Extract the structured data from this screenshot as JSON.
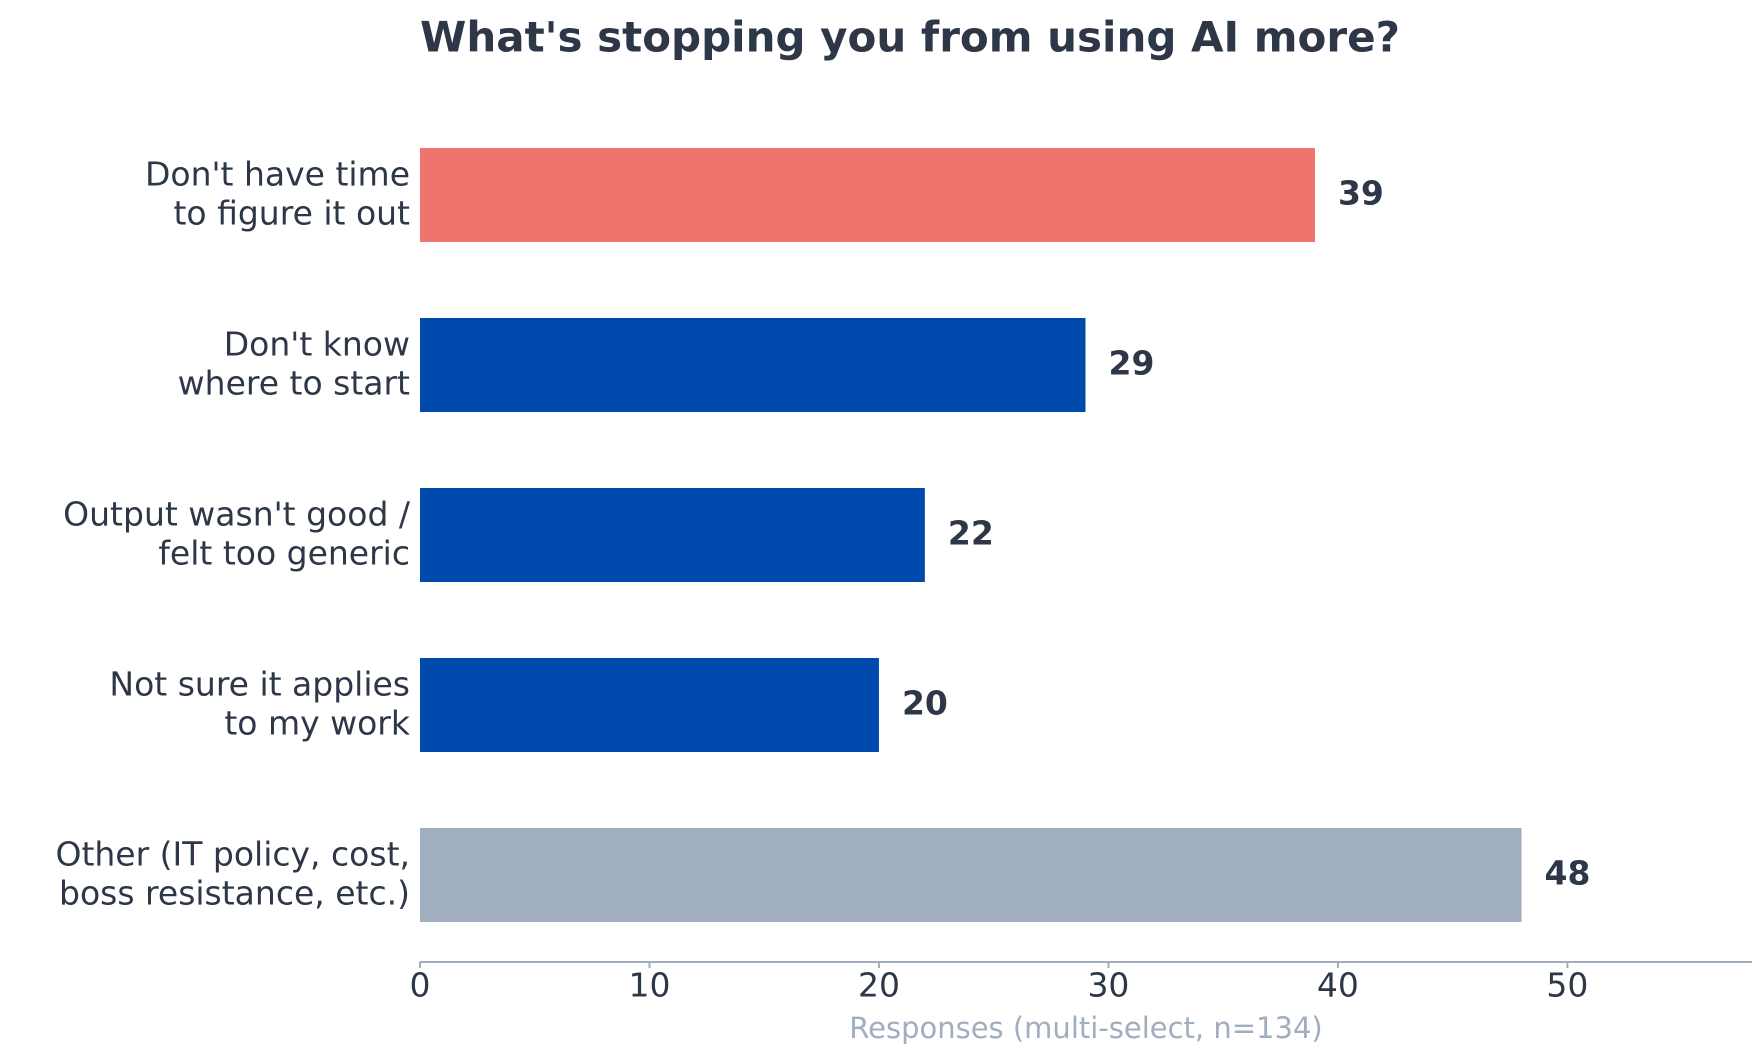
{
  "chart_data": {
    "type": "barh",
    "title": "What's stopping you from using AI more?",
    "x_label": "Responses (multi-select, n=134)",
    "categories": [
      [
        "Don't have time",
        "to figure it out"
      ],
      [
        "Don't know",
        "where to start"
      ],
      [
        "Output wasn't good /",
        "felt too generic"
      ],
      [
        "Not sure it applies",
        "to my work"
      ],
      [
        "Other (IT policy, cost,",
        "boss resistance, etc.)"
      ]
    ],
    "values": [
      39,
      29,
      22,
      20,
      48
    ],
    "colors": [
      "#f0746e",
      "#004aad",
      "#004aad",
      "#004aad",
      "#a0aec0"
    ],
    "xlim": [
      0,
      58
    ],
    "xticks": [
      0,
      10,
      20,
      30,
      40,
      50
    ],
    "grid": false
  }
}
